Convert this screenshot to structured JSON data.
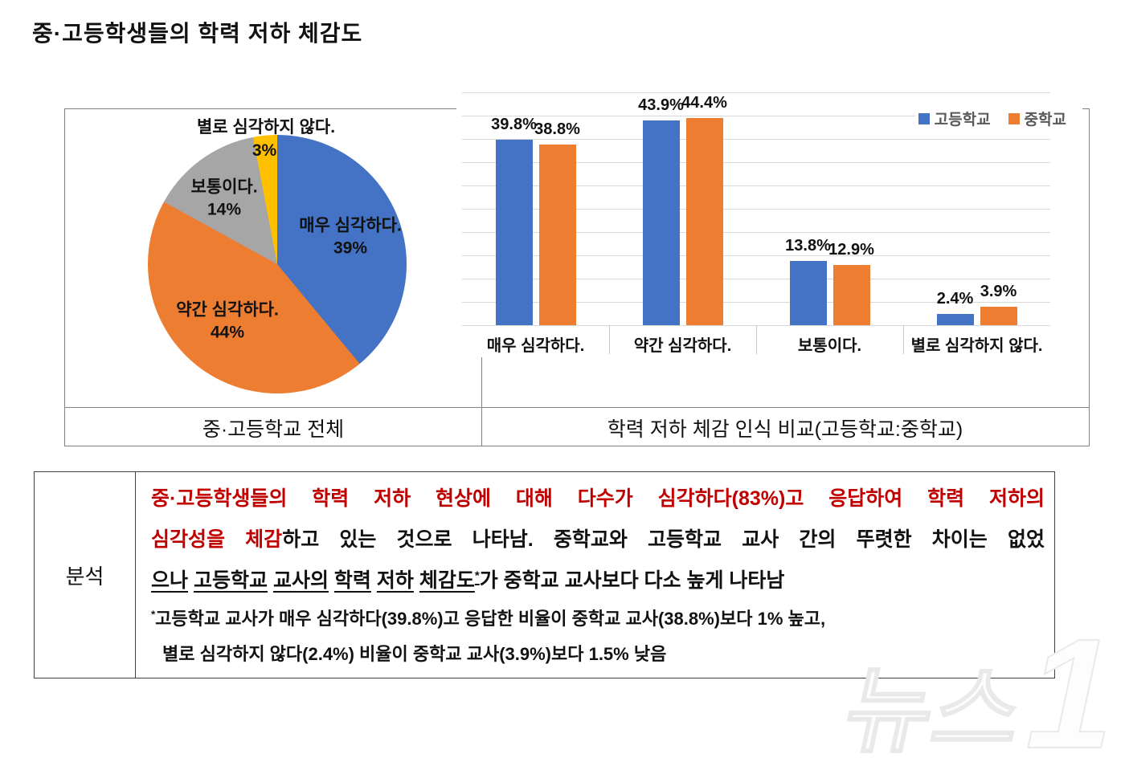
{
  "page_title": "중·고등학생들의 학력 저하 체감도",
  "watermark": {
    "text": "뉴스",
    "numeral": "1"
  },
  "chart_data": [
    {
      "type": "pie",
      "title": "중·고등학교 전체",
      "labels": [
        "매우 심각하다.",
        "약간 심각하다.",
        "보통이다.",
        "별로 심각하지 않다."
      ],
      "values": [
        39,
        44,
        14,
        3
      ],
      "value_labels": [
        "39%",
        "44%",
        "14%",
        "3%"
      ],
      "colors": [
        "#4472c4",
        "#ed7d31",
        "#a6a6a6",
        "#ffc000"
      ],
      "start_angle": "12-oclock",
      "direction": "clockwise"
    },
    {
      "type": "bar",
      "title": "학력 저하 체감 인식 비교(고등학교:중학교)",
      "categories": [
        "매우 심각하다.",
        "약간 심각하다.",
        "보통이다.",
        "별로 심각하지 않다."
      ],
      "series": [
        {
          "name": "고등학교",
          "color": "#4472c4",
          "values": [
            39.8,
            43.9,
            13.8,
            2.4
          ]
        },
        {
          "name": "중학교",
          "color": "#ed7d31",
          "values": [
            38.8,
            44.4,
            12.9,
            3.9
          ]
        }
      ],
      "value_suffix": "%",
      "ylim": [
        0,
        50
      ],
      "gridline_step": 5,
      "grid": true,
      "legend_position": "top-right"
    }
  ],
  "analysis": {
    "label": "분석",
    "main_lines": [
      {
        "justify": true,
        "segments": [
          {
            "text": "중·고등학생들의 학력 저하 현상에 대해 다수가 심각하다(83%)고 응답하여 학력 저하의",
            "color": "red"
          }
        ]
      },
      {
        "justify": true,
        "segments": [
          {
            "text": "심각성을 체감",
            "color": "red"
          },
          {
            "text": "하고 있는 것으로 나타남. 중학교와 고등학교 교사 간의 뚜렷한 차이는 없었",
            "color": "black"
          }
        ]
      },
      {
        "justify": false,
        "segments": [
          {
            "text": "으나",
            "color": "black",
            "underline": true
          },
          {
            "text": " ",
            "color": "black"
          },
          {
            "text": "고등학교",
            "color": "black",
            "underline": true
          },
          {
            "text": " ",
            "color": "black"
          },
          {
            "text": "교사의",
            "color": "black",
            "underline": true
          },
          {
            "text": " ",
            "color": "black"
          },
          {
            "text": "학력",
            "color": "black",
            "underline": true
          },
          {
            "text": " ",
            "color": "black"
          },
          {
            "text": "저하",
            "color": "black",
            "underline": true
          },
          {
            "text": " ",
            "color": "black"
          },
          {
            "text": "체감도",
            "color": "black",
            "underline": true
          },
          {
            "text": "*",
            "color": "black",
            "underline": true,
            "sup": true
          },
          {
            "text": "가 중학교 교사보다 다소 높게 나타남",
            "color": "black"
          }
        ]
      }
    ],
    "footnotes": [
      {
        "indent": false,
        "segments": [
          {
            "text": "*",
            "color": "black",
            "sup": true
          },
          {
            "text": "고등학교 교사가 매우 심각하다(39.8%)고 응답한 비율이 중학교 교사(38.8%)보다 1% 높고,",
            "color": "black"
          }
        ]
      },
      {
        "indent": true,
        "segments": [
          {
            "text": "별로 심각하지 않다(2.4%) 비율이 중학교 교사(3.9%)보다 1.5% 낮음",
            "color": "black"
          }
        ]
      }
    ]
  },
  "colors": {
    "accent_red": "#c00000",
    "gridline": "#d9d9d9",
    "legend_text": "#595959",
    "table_border": "#808080"
  }
}
